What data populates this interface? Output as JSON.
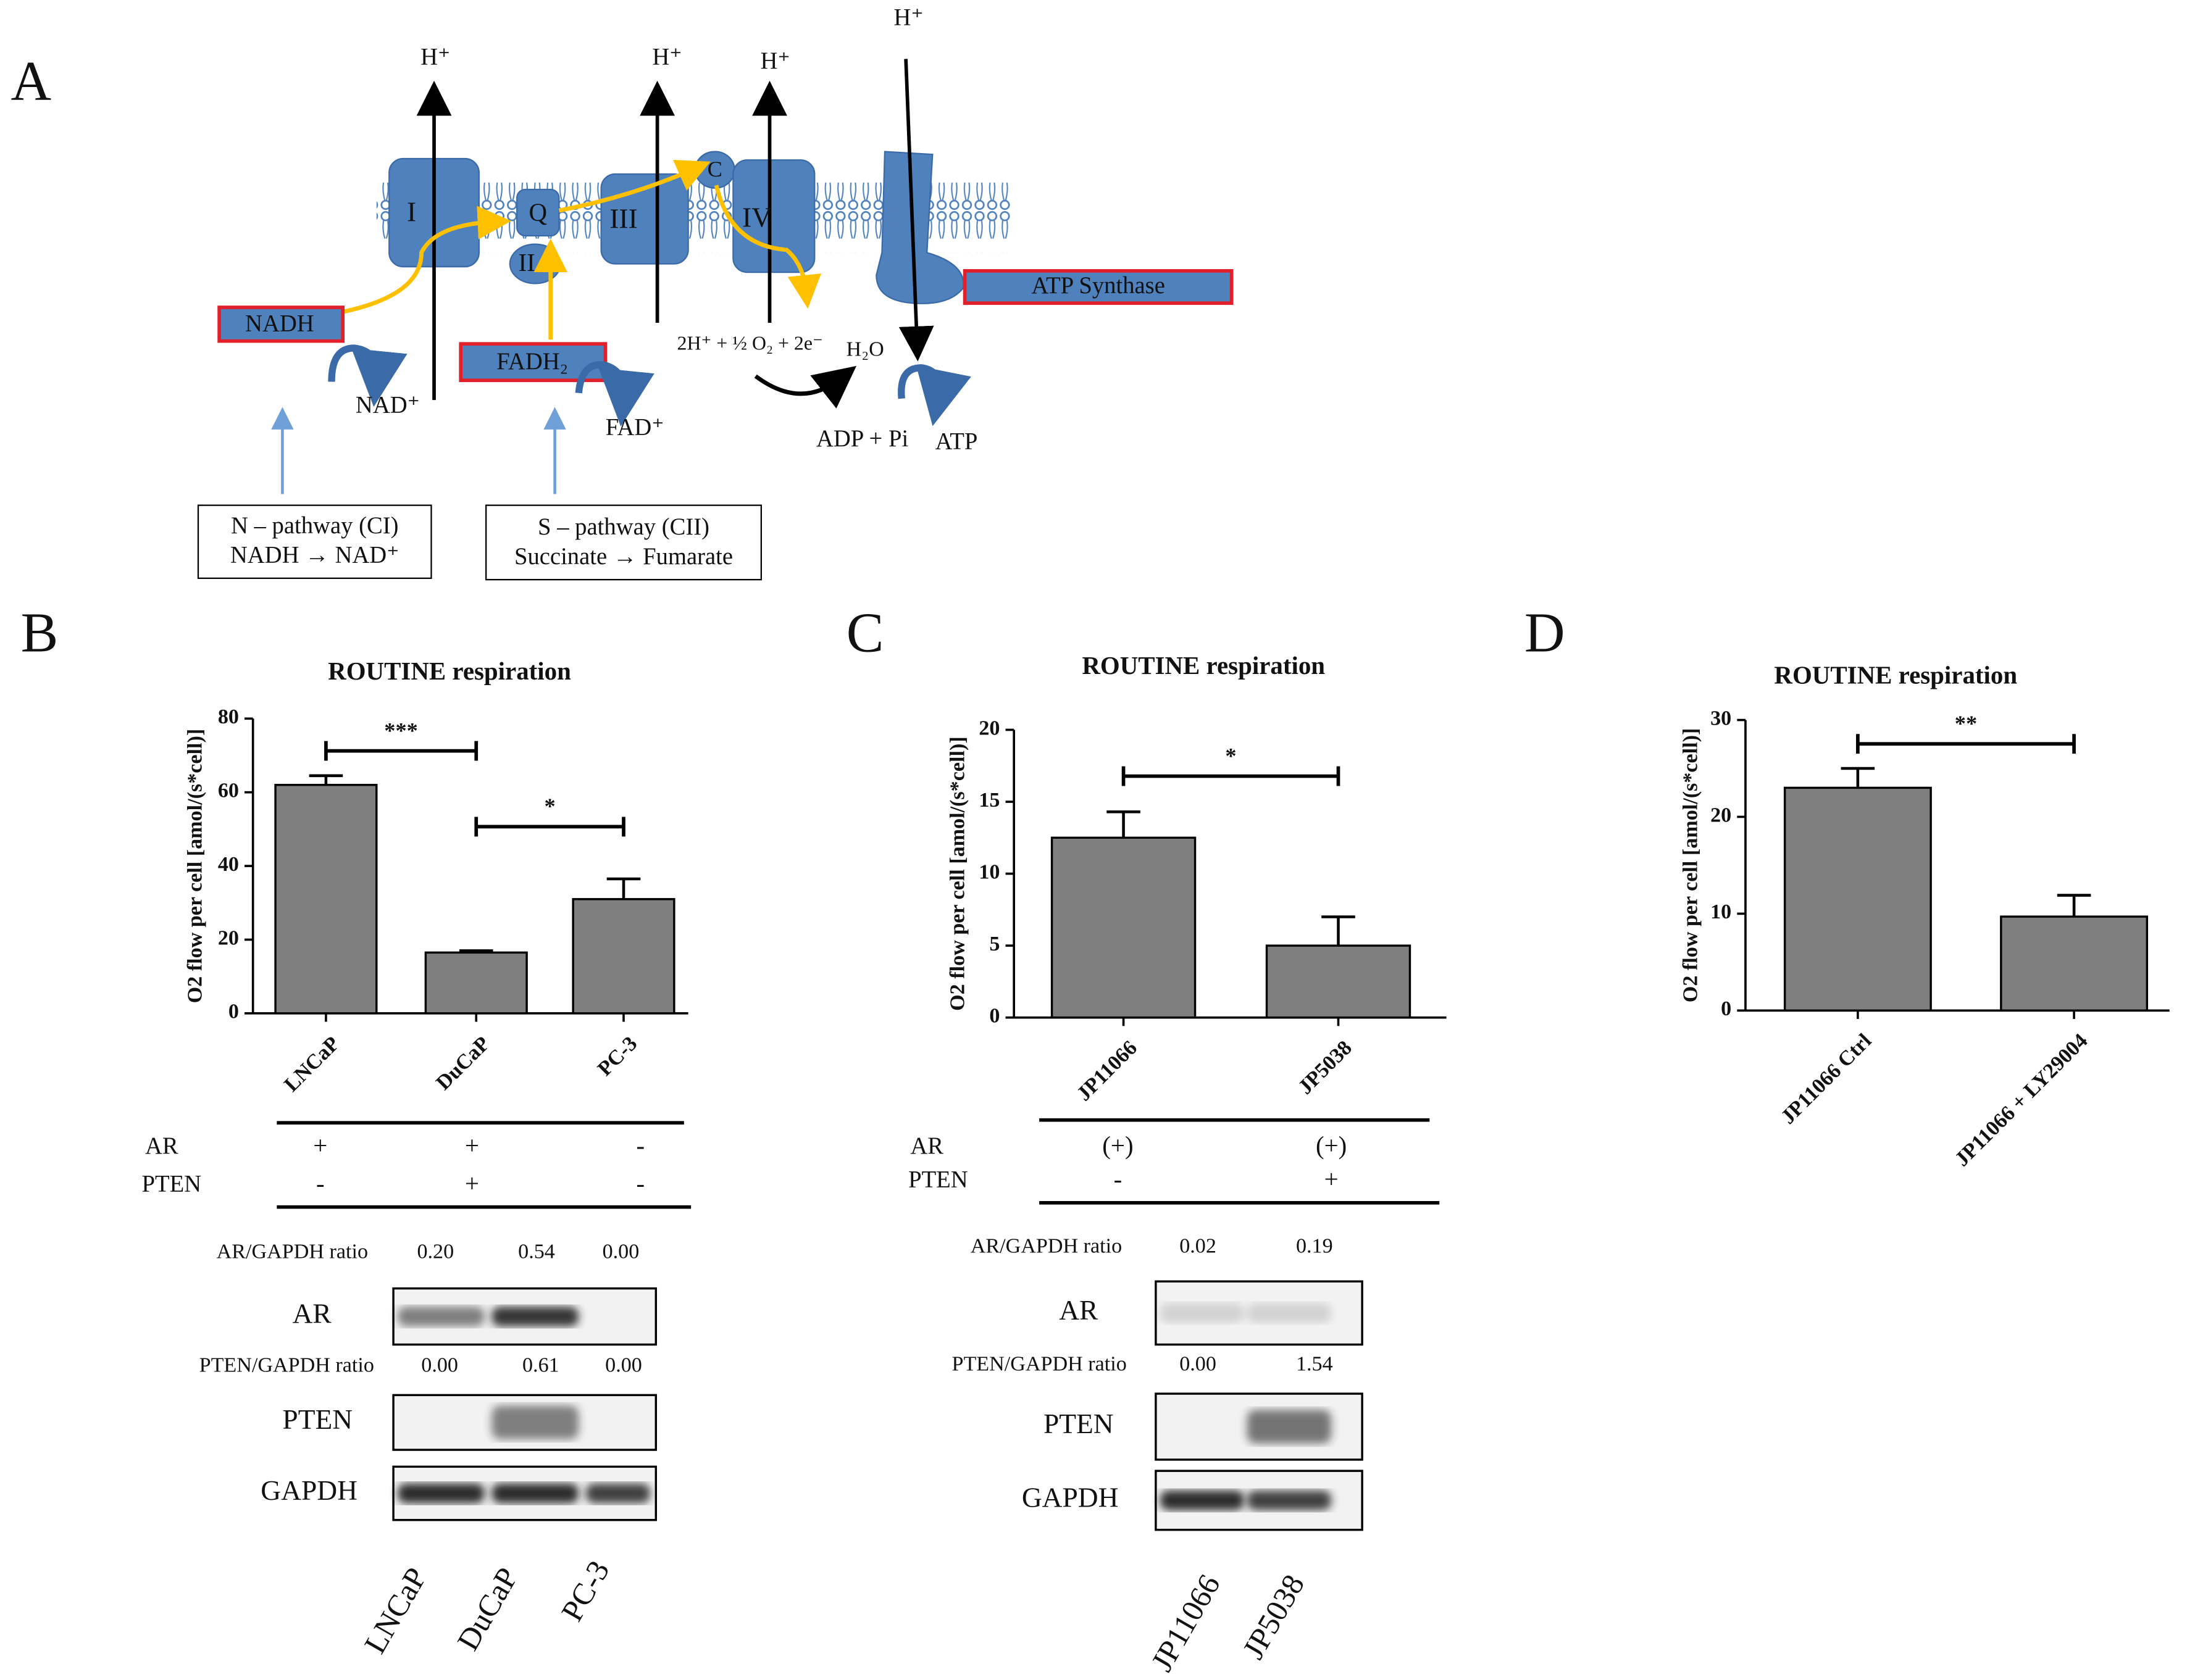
{
  "panel_labels": [
    "A",
    "B",
    "C",
    "D"
  ],
  "diagram": {
    "complexes": [
      "I",
      "Q",
      "II",
      "III",
      "C",
      "IV"
    ],
    "protons": [
      "H⁺",
      "H⁺",
      "H⁺",
      "H⁺"
    ],
    "nadh": "NADH",
    "nad": "NAD⁺",
    "fadh2": "FADH₂",
    "fad": "FAD⁺",
    "reaction": "2H⁺ + ½ O₂ + 2e⁻",
    "water": "H₂O",
    "adp": "ADP + Pi",
    "atp": "ATP",
    "atp_synthase": "ATP Synthase",
    "pathways": [
      {
        "title": "N – pathway (CI)",
        "reaction": "NADH → NAD⁺"
      },
      {
        "title": "S – pathway (CII)",
        "reaction": "Succinate → Fumarate"
      }
    ]
  },
  "chart_data": [
    {
      "type": "bar",
      "title": "ROUTINE respiration",
      "y_label": "O2 flow per cell [amol/(s*cell)]",
      "categories": [
        "LNCaP",
        "DuCaP",
        "PC-3"
      ],
      "values": [
        62,
        16.5,
        31
      ],
      "errors": [
        2.5,
        0.5,
        5.5
      ],
      "color": "#7f7f7f",
      "ylim": [
        0,
        80
      ],
      "yticks": [
        0,
        20,
        40,
        60,
        80
      ],
      "significance": [
        {
          "text": "***",
          "between": [
            "LNCaP",
            "DuCaP"
          ]
        },
        {
          "text": "*",
          "between": [
            "DuCaP",
            "PC-3"
          ]
        }
      ]
    },
    {
      "type": "bar",
      "title": "ROUTINE respiration",
      "y_label": "O2 flow per cell [amol/(s*cell)]",
      "categories": [
        "JP11066",
        "JP5038"
      ],
      "values": [
        12.5,
        5
      ],
      "errors": [
        1.8,
        2
      ],
      "color": "#7f7f7f",
      "ylim": [
        0,
        20
      ],
      "yticks": [
        0,
        5,
        10,
        15,
        20
      ],
      "significance": [
        {
          "text": "*",
          "between": [
            "JP11066",
            "JP5038"
          ]
        }
      ]
    },
    {
      "type": "bar",
      "title": "ROUTINE respiration",
      "y_label": "O2 flow per cell [amol/(s*cell)]",
      "categories": [
        "JP11066 Ctrl",
        "JP11066 + LY29004"
      ],
      "values": [
        23,
        9.7
      ],
      "errors": [
        2,
        2.2
      ],
      "color": "#7f7f7f",
      "ylim": [
        0,
        30
      ],
      "yticks": [
        0,
        10,
        20,
        30
      ],
      "significance": [
        {
          "text": "**",
          "between": [
            "JP11066 Ctrl",
            "JP11066 + LY29004"
          ]
        }
      ]
    }
  ],
  "markers": [
    {
      "rows": [
        {
          "label": "AR",
          "cells": [
            "+",
            "+",
            "-"
          ]
        },
        {
          "label": "PTEN",
          "cells": [
            "-",
            "+",
            "-"
          ]
        }
      ]
    },
    {
      "rows": [
        {
          "label": "AR",
          "cells": [
            "(+)",
            "(+)"
          ]
        },
        {
          "label": "PTEN",
          "cells": [
            "-",
            "+"
          ]
        }
      ]
    }
  ],
  "blots": [
    {
      "ratio_rows": [
        {
          "label": "AR/GAPDH ratio",
          "values": [
            "0.20",
            "0.54",
            "0.00"
          ]
        },
        {
          "label": "PTEN/GAPDH ratio",
          "values": [
            "0.00",
            "0.61",
            "0.00"
          ]
        }
      ],
      "bands": [
        "AR",
        "PTEN",
        "GAPDH"
      ],
      "lanes": [
        "LNCaP",
        "DuCaP",
        "PC-3"
      ]
    },
    {
      "ratio_rows": [
        {
          "label": "AR/GAPDH ratio",
          "values": [
            "0.02",
            "0.19"
          ]
        },
        {
          "label": "PTEN/GAPDH ratio",
          "values": [
            "0.00",
            "1.54"
          ]
        }
      ],
      "bands": [
        "AR",
        "PTEN",
        "GAPDH"
      ],
      "lanes": [
        "JP11066",
        "JP5038"
      ]
    }
  ]
}
